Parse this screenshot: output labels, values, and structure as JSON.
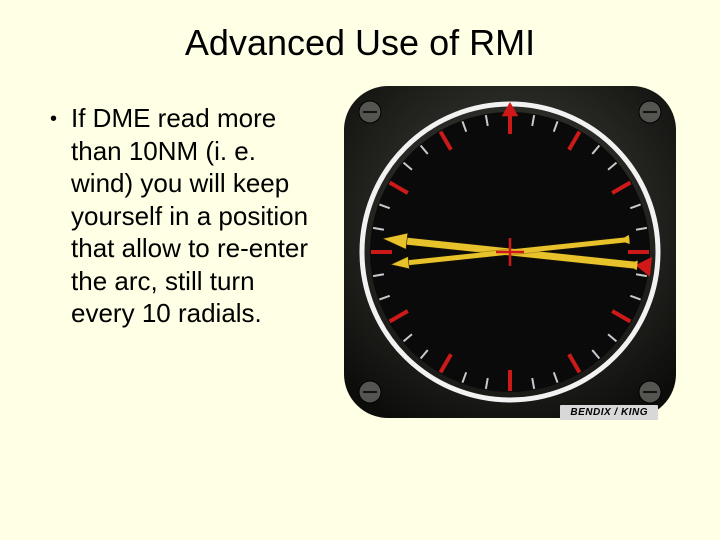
{
  "title": "Advanced Use of RMI",
  "bullet": {
    "text": "If DME read more than 10NM (i. e. wind) you will keep yourself in a position that allow to re-enter the arc, still turn every 10 radials."
  },
  "gauge": {
    "brand": "BENDIX / KING",
    "colors": {
      "bezel_outer": "#1a1a18",
      "bezel_mid": "#3a3a36",
      "screw": "#545450",
      "ring_white": "#f2f2f2",
      "face_black": "#0a0a0a",
      "tick_major_red": "#cc1a18",
      "tick_minor": "#c9c9c9",
      "needle_yellow": "#e8c22a",
      "needle_outline": "#2a2200",
      "lubber_red": "#d01818",
      "center_red": "#d01818"
    },
    "ticks": {
      "major_deg": [
        0,
        30,
        60,
        90,
        120,
        150,
        180,
        210,
        240,
        270,
        300,
        330
      ],
      "minor_step_deg": 10
    },
    "needles": {
      "a_heading_deg": 276,
      "b_heading_deg": 264
    },
    "lubber_deg": 0,
    "tail_marker_deg": 96
  }
}
